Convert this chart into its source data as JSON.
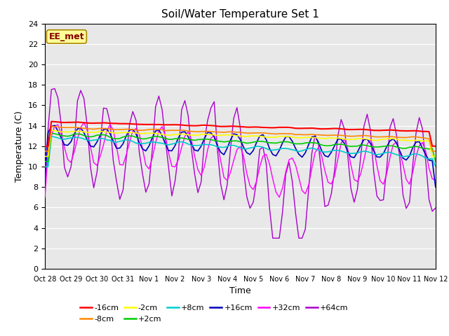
{
  "title": "Soil/Water Temperature Set 1",
  "xlabel": "Time",
  "ylabel": "Temperature (C)",
  "xlim": [
    0,
    15
  ],
  "ylim": [
    0,
    24
  ],
  "yticks": [
    0,
    2,
    4,
    6,
    8,
    10,
    12,
    14,
    16,
    18,
    20,
    22,
    24
  ],
  "xtick_labels": [
    "Oct 28",
    "Oct 29",
    "Oct 30",
    "Oct 31",
    "Nov 1",
    "Nov 2",
    "Nov 3",
    "Nov 4",
    "Nov 5",
    "Nov 6",
    "Nov 7",
    "Nov 8",
    "Nov 9",
    "Nov 10",
    "Nov 11",
    "Nov 12"
  ],
  "annotation": "EE_met",
  "bg_color": "#e8e8e8",
  "colors": {
    "-16cm": "#ff0000",
    "-8cm": "#ff8800",
    "-2cm": "#ffff00",
    "+2cm": "#00cc00",
    "+8cm": "#00cccc",
    "+16cm": "#0000bb",
    "+32cm": "#ff00ff",
    "+64cm": "#aa00cc"
  },
  "legend_row1": [
    "-16cm",
    "-8cm",
    "-2cm",
    "+2cm",
    "+8cm",
    "+16cm"
  ],
  "legend_row2": [
    "+32cm",
    "+64cm"
  ]
}
